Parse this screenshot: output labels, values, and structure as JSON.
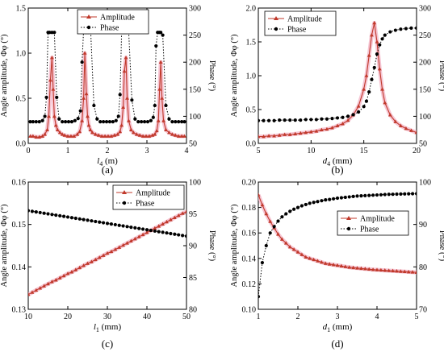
{
  "figure": {
    "panels": [
      "(a)",
      "(b)",
      "(c)",
      "(d)"
    ]
  },
  "colors": {
    "amplitude": "#c0392b",
    "amplitude_glow": "#f4b6c8",
    "phase": "#000000"
  },
  "chart_data": [
    {
      "type": "line",
      "panel": "(a)",
      "xlabel": "l4 (m)",
      "xlabel_main": "l",
      "xlabel_sub": "4",
      "xlabel_unit": " (m)",
      "ylabel": "Angle amplitude, Φφ (°)",
      "y2label": "Phase (°)",
      "xlim": [
        0,
        4
      ],
      "ylim": [
        0,
        1.5
      ],
      "y2lim": [
        50,
        300
      ],
      "xticks": [
        0,
        1,
        2,
        3,
        4
      ],
      "yticks": [
        0.0,
        0.5,
        1.0,
        1.5
      ],
      "yticklabels": [
        "0.0",
        "0.5",
        "1.0",
        "1.5"
      ],
      "y2ticks": [
        50,
        100,
        150,
        200,
        250,
        300
      ],
      "legend": "top-center",
      "series": [
        {
          "name": "Amplitude",
          "axis": "left",
          "x": [
            0.05,
            0.12,
            0.2,
            0.28,
            0.36,
            0.42,
            0.48,
            0.52,
            0.56,
            0.6,
            0.63,
            0.66,
            0.7,
            0.74,
            0.8,
            0.86,
            0.92,
            1.0,
            1.08,
            1.16,
            1.24,
            1.3,
            1.36,
            1.4,
            1.43,
            1.47,
            1.5,
            1.53,
            1.57,
            1.62,
            1.7,
            1.78,
            1.86,
            1.94,
            2.02,
            2.1,
            2.18,
            2.26,
            2.32,
            2.36,
            2.4,
            2.43,
            2.47,
            2.5,
            2.54,
            2.6,
            2.66,
            2.74,
            2.82,
            2.9,
            2.98,
            3.06,
            3.14,
            3.2,
            3.25,
            3.29,
            3.32,
            3.35,
            3.38,
            3.42,
            3.48,
            3.56,
            3.64,
            3.72,
            3.8,
            3.88,
            3.95
          ],
          "y": [
            0.08,
            0.08,
            0.07,
            0.07,
            0.08,
            0.1,
            0.15,
            0.3,
            0.7,
            0.95,
            0.6,
            0.3,
            0.2,
            0.15,
            0.12,
            0.1,
            0.09,
            0.08,
            0.08,
            0.08,
            0.1,
            0.13,
            0.25,
            0.5,
            1.0,
            0.55,
            0.3,
            0.2,
            0.15,
            0.12,
            0.1,
            0.09,
            0.08,
            0.08,
            0.08,
            0.08,
            0.09,
            0.1,
            0.13,
            0.2,
            0.4,
            0.8,
            0.95,
            0.5,
            0.25,
            0.15,
            0.12,
            0.1,
            0.09,
            0.08,
            0.08,
            0.08,
            0.09,
            0.1,
            0.14,
            0.25,
            0.6,
            0.9,
            0.5,
            0.25,
            0.15,
            0.12,
            0.1,
            0.09,
            0.08,
            0.08,
            0.08
          ]
        },
        {
          "name": "Phase",
          "axis": "right",
          "x": [
            0.05,
            0.12,
            0.2,
            0.28,
            0.36,
            0.42,
            0.46,
            0.5,
            0.54,
            0.6,
            0.66,
            0.72,
            0.78,
            0.86,
            0.94,
            1.02,
            1.1,
            1.18,
            1.26,
            1.32,
            1.36,
            1.4,
            1.44,
            1.48,
            1.52,
            1.58,
            1.66,
            1.74,
            1.82,
            1.9,
            1.98,
            2.06,
            2.14,
            2.22,
            2.28,
            2.32,
            2.36,
            2.4,
            2.44,
            2.48,
            2.54,
            2.62,
            2.7,
            2.78,
            2.86,
            2.94,
            3.02,
            3.1,
            3.16,
            3.2,
            3.23,
            3.27,
            3.31,
            3.35,
            3.4,
            3.48,
            3.56,
            3.64,
            3.72,
            3.8,
            3.88,
            3.95
          ],
          "y": [
            90,
            90,
            90,
            90,
            92,
            100,
            135,
            255,
            255,
            255,
            255,
            135,
            95,
            90,
            90,
            90,
            90,
            92,
            96,
            110,
            200,
            260,
            255,
            255,
            255,
            255,
            120,
            95,
            90,
            90,
            90,
            90,
            90,
            92,
            100,
            140,
            255,
            255,
            255,
            255,
            255,
            130,
            95,
            90,
            90,
            90,
            90,
            92,
            98,
            120,
            230,
            255,
            255,
            255,
            250,
            120,
            95,
            90,
            90,
            90,
            90,
            90
          ]
        }
      ]
    },
    {
      "type": "line",
      "panel": "(b)",
      "xlabel": "d4 (mm)",
      "xlabel_main": "d",
      "xlabel_sub": "4",
      "xlabel_unit": " (mm)",
      "ylabel": "Angle amplitude, Φφ (°)",
      "y2label": "Phase (°)",
      "xlim": [
        5,
        20
      ],
      "ylim": [
        0,
        2.0
      ],
      "y2lim": [
        50,
        300
      ],
      "xticks": [
        5,
        10,
        15,
        20
      ],
      "yticks": [
        0.0,
        0.5,
        1.0,
        1.5,
        2.0
      ],
      "yticklabels": [
        "0.0",
        "0.5",
        "1.0",
        "1.5",
        "2.0"
      ],
      "y2ticks": [
        50,
        100,
        150,
        200,
        250,
        300
      ],
      "legend": "top-left",
      "series": [
        {
          "name": "Amplitude",
          "axis": "left",
          "x": [
            5,
            5.5,
            6,
            6.5,
            7,
            7.5,
            8,
            8.5,
            9,
            9.5,
            10,
            10.5,
            11,
            11.5,
            12,
            12.5,
            13,
            13.5,
            14,
            14.5,
            15,
            15.25,
            15.5,
            15.75,
            16,
            16.25,
            16.5,
            16.75,
            17,
            17.5,
            18,
            18.5,
            19,
            19.5,
            20
          ],
          "y": [
            0.1,
            0.1,
            0.11,
            0.11,
            0.12,
            0.13,
            0.13,
            0.14,
            0.15,
            0.16,
            0.17,
            0.18,
            0.2,
            0.21,
            0.23,
            0.26,
            0.29,
            0.34,
            0.42,
            0.55,
            0.8,
            1.0,
            1.3,
            1.6,
            1.78,
            1.5,
            1.1,
            0.8,
            0.6,
            0.42,
            0.32,
            0.26,
            0.22,
            0.19,
            0.16
          ]
        },
        {
          "name": "Phase",
          "axis": "right",
          "x": [
            5,
            5.5,
            6,
            6.5,
            7,
            7.5,
            8,
            8.5,
            9,
            9.5,
            10,
            10.5,
            11,
            11.5,
            12,
            12.5,
            13,
            13.5,
            14,
            14.5,
            15,
            15.25,
            15.5,
            15.75,
            16,
            16.25,
            16.5,
            16.75,
            17,
            17.5,
            18,
            18.5,
            19,
            19.5,
            20
          ],
          "y": [
            92,
            92,
            92,
            92,
            93,
            93,
            93,
            93,
            93,
            94,
            94,
            94,
            95,
            95,
            96,
            97,
            98,
            100,
            103,
            108,
            118,
            128,
            145,
            168,
            190,
            215,
            232,
            243,
            250,
            256,
            259,
            261,
            262,
            263,
            263
          ]
        }
      ]
    },
    {
      "type": "line",
      "panel": "(c)",
      "xlabel": "l1 (mm)",
      "xlabel_main": "l",
      "xlabel_sub": "1",
      "xlabel_unit": " (mm)",
      "ylabel": "Angle amplitude, Φφ (°)",
      "y2label": "Phase (°)",
      "xlim": [
        10,
        50
      ],
      "ylim": [
        0.13,
        0.16
      ],
      "y2lim": [
        80,
        100
      ],
      "xticks": [
        10,
        20,
        30,
        40,
        50
      ],
      "yticks": [
        0.13,
        0.14,
        0.15,
        0.16
      ],
      "yticklabels": [
        "0.13",
        "0.14",
        "0.15",
        "0.16"
      ],
      "y2ticks": [
        80,
        85,
        90,
        95,
        100
      ],
      "legend": "top-right",
      "series": [
        {
          "name": "Amplitude",
          "axis": "left",
          "x": [
            10,
            11,
            12,
            13,
            14,
            15,
            16,
            17,
            18,
            19,
            20,
            21,
            22,
            23,
            24,
            25,
            26,
            27,
            28,
            29,
            30,
            31,
            32,
            33,
            34,
            35,
            36,
            37,
            38,
            39,
            40,
            41,
            42,
            43,
            44,
            45,
            46,
            47,
            48,
            49,
            50
          ],
          "y": [
            0.1335,
            0.134,
            0.1345,
            0.135,
            0.1355,
            0.136,
            0.1365,
            0.1369,
            0.1374,
            0.1379,
            0.1384,
            0.1388,
            0.1393,
            0.1398,
            0.1403,
            0.1408,
            0.1412,
            0.1417,
            0.1422,
            0.1427,
            0.1432,
            0.1436,
            0.1441,
            0.1446,
            0.1451,
            0.1456,
            0.1461,
            0.1466,
            0.1471,
            0.1476,
            0.1481,
            0.1486,
            0.1491,
            0.1496,
            0.1501,
            0.1506,
            0.1511,
            0.1516,
            0.1521,
            0.1526,
            0.153
          ]
        },
        {
          "name": "Phase",
          "axis": "right",
          "x": [
            10,
            11,
            12,
            13,
            14,
            15,
            16,
            17,
            18,
            19,
            20,
            21,
            22,
            23,
            24,
            25,
            26,
            27,
            28,
            29,
            30,
            31,
            32,
            33,
            34,
            35,
            36,
            37,
            38,
            39,
            40,
            41,
            42,
            43,
            44,
            45,
            46,
            47,
            48,
            49,
            50
          ],
          "y": [
            95.5,
            95.4,
            95.3,
            95.2,
            95.1,
            95.0,
            94.9,
            94.8,
            94.7,
            94.6,
            94.5,
            94.4,
            94.3,
            94.2,
            94.1,
            94.0,
            93.9,
            93.8,
            93.7,
            93.6,
            93.5,
            93.4,
            93.3,
            93.2,
            93.1,
            93.0,
            92.9,
            92.8,
            92.7,
            92.6,
            92.5,
            92.4,
            92.3,
            92.2,
            92.1,
            92.0,
            91.9,
            91.8,
            91.7,
            91.6,
            91.5
          ]
        }
      ]
    },
    {
      "type": "line",
      "panel": "(d)",
      "xlabel": "d1 (mm)",
      "xlabel_main": "d",
      "xlabel_sub": "1",
      "xlabel_unit": " (mm)",
      "ylabel": "Angle amplitude, Φφ (°)",
      "y2label": "Phase (°)",
      "xlim": [
        1,
        5
      ],
      "ylim": [
        0.1,
        0.2
      ],
      "y2lim": [
        70,
        100
      ],
      "xticks": [
        1,
        2,
        3,
        4,
        5
      ],
      "yticks": [
        0.1,
        0.12,
        0.14,
        0.16,
        0.18,
        0.2
      ],
      "yticklabels": [
        "0.10",
        "0.12",
        "0.14",
        "0.16",
        "0.18",
        "0.20"
      ],
      "y2ticks": [
        70,
        80,
        90,
        100
      ],
      "legend": "center-right",
      "series": [
        {
          "name": "Amplitude",
          "axis": "left",
          "x": [
            1,
            1.1,
            1.2,
            1.3,
            1.4,
            1.5,
            1.6,
            1.7,
            1.8,
            1.9,
            2,
            2.1,
            2.2,
            2.3,
            2.4,
            2.5,
            2.6,
            2.7,
            2.8,
            2.9,
            3,
            3.1,
            3.2,
            3.3,
            3.4,
            3.5,
            3.6,
            3.7,
            3.8,
            3.9,
            4,
            4.1,
            4.2,
            4.3,
            4.4,
            4.5,
            4.6,
            4.7,
            4.8,
            4.9,
            5
          ],
          "y": [
            0.19,
            0.182,
            0.175,
            0.169,
            0.164,
            0.159,
            0.155,
            0.152,
            0.149,
            0.147,
            0.145,
            0.143,
            0.141,
            0.14,
            0.139,
            0.138,
            0.137,
            0.136,
            0.1355,
            0.135,
            0.1345,
            0.134,
            0.1335,
            0.133,
            0.1327,
            0.1324,
            0.1321,
            0.1318,
            0.1315,
            0.1312,
            0.131,
            0.1308,
            0.1306,
            0.1304,
            0.1302,
            0.13,
            0.1298,
            0.1296,
            0.1294,
            0.1292,
            0.129
          ]
        },
        {
          "name": "Phase",
          "axis": "right",
          "x": [
            1,
            1.1,
            1.2,
            1.3,
            1.4,
            1.5,
            1.6,
            1.7,
            1.8,
            1.9,
            2,
            2.1,
            2.2,
            2.3,
            2.4,
            2.5,
            2.6,
            2.7,
            2.8,
            2.9,
            3,
            3.1,
            3.2,
            3.3,
            3.4,
            3.5,
            3.6,
            3.7,
            3.8,
            3.9,
            4,
            4.1,
            4.2,
            4.3,
            4.4,
            4.5,
            4.6,
            4.7,
            4.8,
            4.9,
            5
          ],
          "y": [
            73,
            81,
            85,
            88,
            89.5,
            90.8,
            91.8,
            92.5,
            93.1,
            93.6,
            94,
            94.4,
            94.7,
            95,
            95.2,
            95.4,
            95.6,
            95.8,
            95.9,
            96.05,
            96.2,
            96.3,
            96.4,
            96.5,
            96.6,
            96.7,
            96.75,
            96.8,
            96.85,
            96.9,
            96.95,
            97,
            97.05,
            97.1,
            97.12,
            97.15,
            97.18,
            97.2,
            97.22,
            97.24,
            97.26
          ]
        }
      ]
    }
  ]
}
